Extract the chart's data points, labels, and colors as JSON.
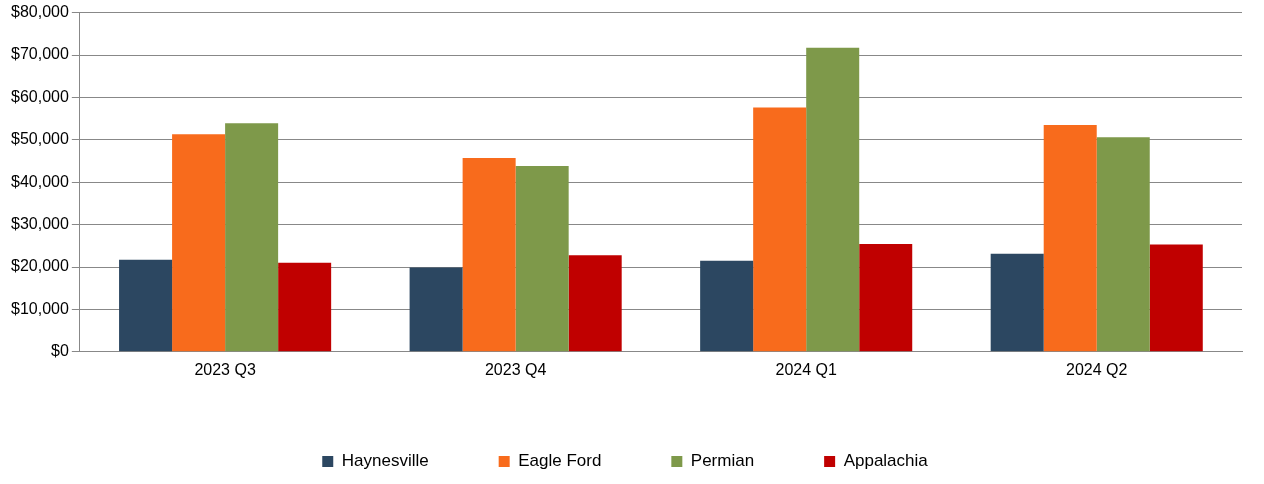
{
  "chart_data": {
    "type": "bar",
    "categories": [
      "2023 Q3",
      "2023 Q4",
      "2024 Q1",
      "2024 Q2"
    ],
    "series": [
      {
        "name": "Haynesville",
        "color": "#2c4761",
        "values": [
          21700,
          19900,
          21500,
          23100
        ]
      },
      {
        "name": "Eagle Ford",
        "color": "#f86b1c",
        "values": [
          51300,
          45700,
          57600,
          53500
        ]
      },
      {
        "name": "Permian",
        "color": "#7e994a",
        "values": [
          53900,
          43800,
          71700,
          50600
        ]
      },
      {
        "name": "Appalachia",
        "color": "#c00000",
        "values": [
          21000,
          22800,
          25400,
          25300
        ]
      }
    ],
    "ylim": [
      0,
      80000
    ],
    "yticks": [
      {
        "value": 0,
        "label": "$0"
      },
      {
        "value": 10000,
        "label": "$10,000"
      },
      {
        "value": 20000,
        "label": "$20,000"
      },
      {
        "value": 30000,
        "label": "$30,000"
      },
      {
        "value": 40000,
        "label": "$40,000"
      },
      {
        "value": 50000,
        "label": "$50,000"
      },
      {
        "value": 60000,
        "label": "$60,000"
      },
      {
        "value": 70000,
        "label": "$70,000"
      },
      {
        "value": 80000,
        "label": "$80,000"
      }
    ],
    "grid": "y",
    "legend": "bottom"
  }
}
